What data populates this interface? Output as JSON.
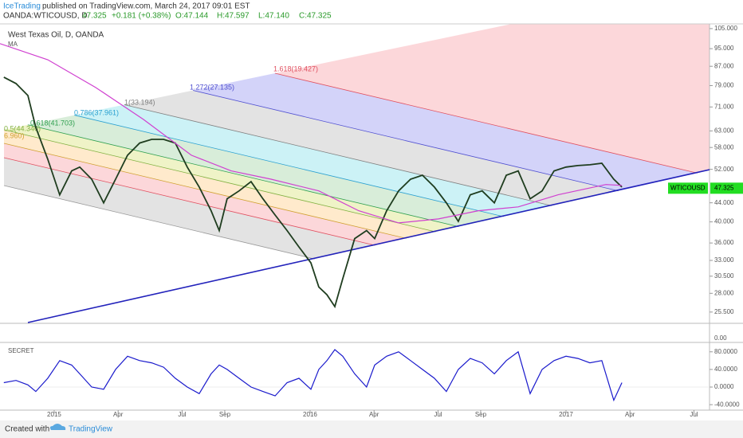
{
  "header": {
    "author": "IceTrading",
    "published": "published on TradingView.com, March 24, 2017 09:01 EST",
    "symbol": "OANDA:WTICOUSD, D",
    "price": "47.325",
    "change": "+0.181 (+0.38%)",
    "open": "O:47.144",
    "high": "H:47.597",
    "low": "L:47.140",
    "close": "C:47.325"
  },
  "footer": {
    "created": "Created with",
    "brand": "TradingView"
  },
  "empty_panel_tick": "0.00",
  "fib_levels": [
    {
      "label": "1.618(19.427)",
      "color": "#e05060"
    },
    {
      "label": "1.272(27.135)",
      "color": "#5050d0"
    },
    {
      "label": "1(33.194)",
      "color": "#808080"
    },
    {
      "label": "0.786(37.961)",
      "color": "#2aa0d0"
    },
    {
      "label": "0.618(41.703)",
      "color": "#30a050"
    },
    {
      "label": "0.5(44.340)",
      "color": "#80b040"
    },
    {
      "label": "6.960)",
      "color": "#d0a030"
    }
  ],
  "chart_data": [
    {
      "type": "line",
      "title": "West Texas Oil, D, OANDA",
      "log_scale": true,
      "last_price": 47.325,
      "xlim": [
        -2.54,
        30.73
      ],
      "ylim": [
        24.2,
        107.5
      ],
      "xticks": [
        {
          "value": 0,
          "label": "2015"
        },
        {
          "value": 3,
          "label": "Apr"
        },
        {
          "value": 6,
          "label": "Jul"
        },
        {
          "value": 8,
          "label": "Sep"
        },
        {
          "value": 12,
          "label": "2016"
        },
        {
          "value": 15,
          "label": "Apr"
        },
        {
          "value": 18,
          "label": "Jul"
        },
        {
          "value": 20,
          "label": "Sep"
        },
        {
          "value": 24,
          "label": "2017"
        },
        {
          "value": 27,
          "label": "Apr"
        },
        {
          "value": 30,
          "label": "Jul"
        }
      ],
      "yticks": [
        {
          "value": 105,
          "label": "105.000"
        },
        {
          "value": 95,
          "label": "95.000"
        },
        {
          "value": 87,
          "label": "87.000"
        },
        {
          "value": 79,
          "label": "79.000"
        },
        {
          "value": 71,
          "label": "71.000"
        },
        {
          "value": 63,
          "label": "63.000"
        },
        {
          "value": 58,
          "label": "58.000"
        },
        {
          "value": 52,
          "label": "52.000"
        },
        {
          "value": 44,
          "label": "44.000"
        },
        {
          "value": 40,
          "label": "40.000"
        },
        {
          "value": 36,
          "label": "36.000"
        },
        {
          "value": 33,
          "label": "33.000"
        },
        {
          "value": 30.5,
          "label": "30.500"
        },
        {
          "value": 28,
          "label": "28.000"
        },
        {
          "value": 25.5,
          "label": "25.500"
        }
      ],
      "series": [
        {
          "name": "WTICOUSD",
          "color": "#1f3d1f",
          "x": [
            -2.36,
            -1.79,
            -1.23,
            -0.86,
            -0.3,
            0.26,
            0.82,
            1.2,
            1.76,
            2.32,
            2.88,
            3.44,
            4.01,
            4.57,
            5.13,
            5.68,
            6.24,
            6.8,
            7.36,
            7.74,
            8.11,
            8.67,
            9.23,
            9.79,
            10.36,
            10.92,
            11.48,
            12.04,
            12.41,
            12.79,
            13.16,
            13.53,
            14.09,
            14.65,
            15.03,
            15.59,
            16.15,
            16.71,
            17.27,
            17.83,
            18.39,
            18.95,
            19.51,
            20.07,
            20.64,
            21.2,
            21.76,
            22.32,
            22.88,
            23.44,
            24.0,
            24.56,
            25.12,
            25.68,
            26.24,
            26.62
          ],
          "values": [
            82.4,
            79.8,
            75.2,
            64.1,
            54.7,
            45.8,
            51.6,
            52.6,
            49.5,
            44.0,
            49.5,
            55.8,
            59.3,
            60.4,
            60.4,
            59.3,
            52.6,
            47.6,
            42.3,
            38.3,
            44.9,
            46.7,
            48.9,
            44.9,
            41.4,
            38.3,
            35.3,
            32.6,
            28.9,
            27.8,
            26.2,
            30.1,
            36.8,
            38.3,
            36.8,
            42.3,
            46.7,
            49.5,
            50.5,
            47.6,
            44.0,
            40.1,
            45.8,
            46.7,
            44.0,
            50.5,
            51.6,
            44.9,
            46.7,
            51.6,
            52.6,
            53.0,
            53.2,
            53.6,
            49.5,
            47.6
          ]
        },
        {
          "name": "MA",
          "color": "#d040d0",
          "x": [
            -2.54,
            -0.3,
            1.94,
            4.19,
            6.43,
            8.3,
            10.17,
            12.41,
            14.28,
            16.15,
            18.02,
            19.89,
            21.76,
            23.63,
            25.87,
            26.62
          ],
          "values": [
            97.4,
            89.9,
            78.3,
            66.7,
            55.8,
            51.6,
            49.5,
            46.7,
            42.3,
            39.8,
            40.6,
            42.3,
            43.1,
            45.8,
            48.2,
            48.0
          ]
        }
      ]
    },
    {
      "type": "line",
      "title": "SECRET",
      "xlim": [
        -2.54,
        30.73
      ],
      "ylim": [
        -52.4,
        101.3
      ],
      "yticks": [
        {
          "value": 80,
          "label": "80.0000"
        },
        {
          "value": 40,
          "label": "40.0000"
        },
        {
          "value": 0,
          "label": "0.0000"
        },
        {
          "value": -40,
          "label": "-40.0000"
        }
      ],
      "series": [
        {
          "color": "#1a1acc",
          "x": [
            -2.36,
            -1.79,
            -1.23,
            -0.86,
            -0.3,
            0.26,
            0.82,
            1.2,
            1.76,
            2.32,
            2.88,
            3.44,
            4.01,
            4.57,
            5.13,
            5.68,
            6.24,
            6.8,
            7.36,
            7.74,
            8.11,
            8.67,
            9.23,
            9.79,
            10.36,
            10.92,
            11.48,
            12.04,
            12.41,
            12.79,
            13.16,
            13.53,
            14.09,
            14.65,
            15.03,
            15.59,
            16.15,
            16.71,
            17.27,
            17.83,
            18.39,
            18.95,
            19.51,
            20.07,
            20.64,
            21.2,
            21.76,
            22.32,
            22.88,
            23.44,
            24.0,
            24.56,
            25.12,
            25.68,
            26.24,
            26.62
          ],
          "values": [
            10,
            15,
            5,
            -10,
            20,
            60,
            50,
            30,
            0,
            -5,
            40,
            70,
            60,
            55,
            45,
            20,
            0,
            -15,
            30,
            50,
            40,
            20,
            0,
            -10,
            -20,
            10,
            20,
            -5,
            40,
            60,
            85,
            70,
            30,
            0,
            50,
            70,
            80,
            60,
            40,
            20,
            -10,
            40,
            65,
            55,
            30,
            60,
            80,
            -15,
            40,
            60,
            70,
            65,
            55,
            60,
            -30,
            10
          ]
        }
      ]
    }
  ]
}
